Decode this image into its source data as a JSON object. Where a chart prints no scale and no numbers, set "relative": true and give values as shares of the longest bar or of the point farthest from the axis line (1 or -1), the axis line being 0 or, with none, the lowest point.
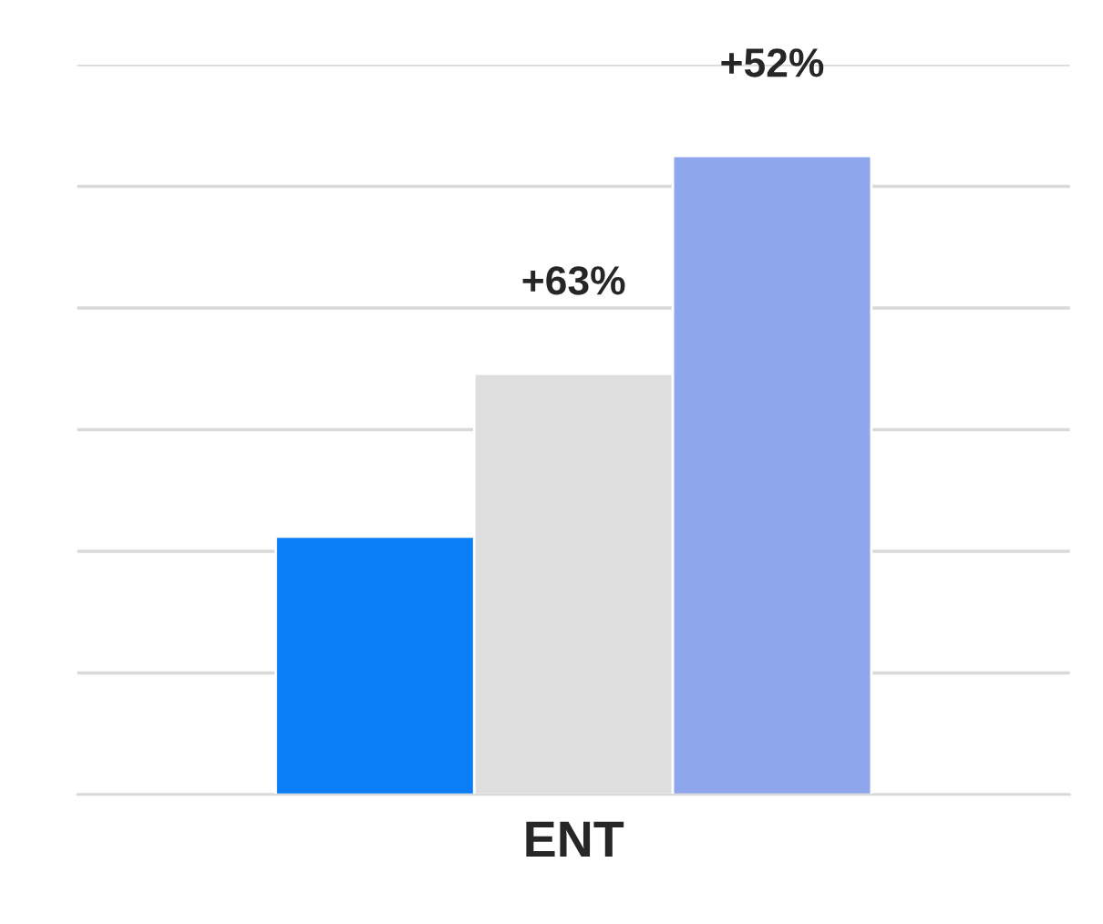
{
  "chart_data": {
    "type": "bar",
    "relative": true,
    "grid": "y",
    "categories": [
      null,
      "ENT",
      null
    ],
    "values": [
      0.404,
      0.659,
      1
    ],
    "colors": [
      "#0a7ff5",
      "#dedede",
      "#8ea6ec"
    ],
    "annotations": [
      "+63%",
      "+52%"
    ]
  }
}
